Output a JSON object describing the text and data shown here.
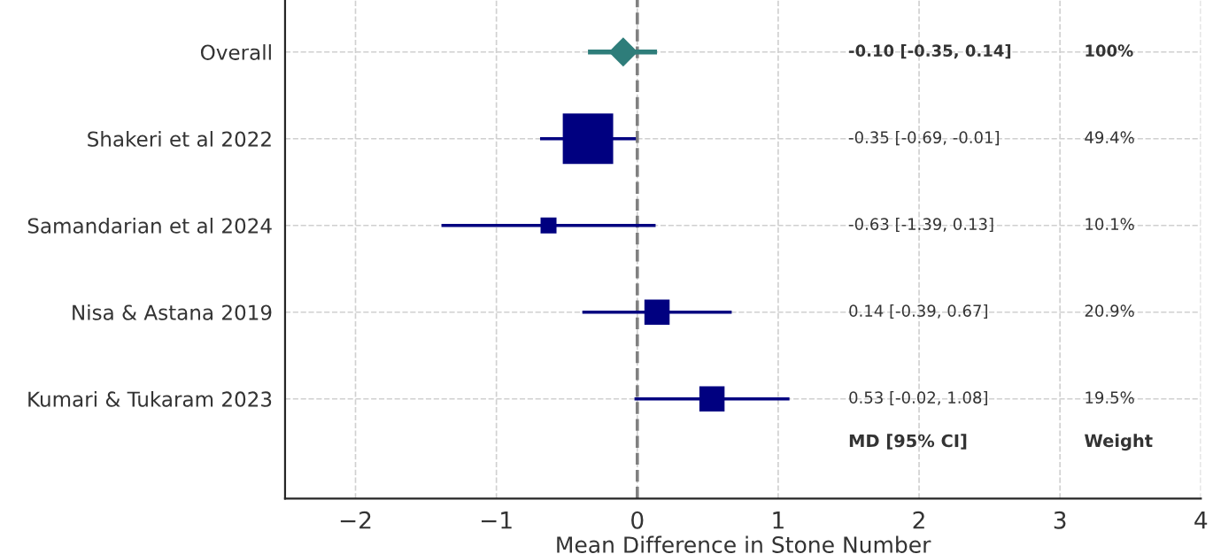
{
  "chart_data": {
    "type": "scatter",
    "orientation": "horizontal",
    "xlabel": "Mean Difference in Stone Number",
    "categories": [
      "Overall",
      "Shakeri et al 2022",
      "Samandarian et al 2024",
      "Nisa & Astana 2019",
      "Kumari & Tukaram 2023"
    ],
    "series": [
      {
        "marker": "diamond",
        "color": "#2e7d7a",
        "values": [
          -0.1,
          null,
          null,
          null,
          null
        ],
        "errors": [
          [
            -0.35,
            0.14
          ],
          null,
          null,
          null,
          null
        ]
      },
      {
        "type": "bubble",
        "marker": "square",
        "color": "#000080",
        "values": [
          null,
          -0.35,
          -0.63,
          0.14,
          0.53
        ],
        "sizes": [
          null,
          1,
          0.1,
          0.25,
          0.25
        ],
        "errors": [
          null,
          [
            -0.69,
            -0.01
          ],
          [
            -1.39,
            0.13
          ],
          [
            -0.39,
            0.67
          ],
          [
            -0.02,
            1.08
          ]
        ]
      }
    ],
    "xlim": [
      -2.5,
      4
    ],
    "xticks": [
      {
        "value": -2,
        "label": "−2"
      },
      {
        "value": -1,
        "label": "−1"
      },
      0,
      1,
      2,
      3,
      4
    ],
    "grid": true,
    "ref_lines": [
      {
        "axis": "x",
        "value": 0,
        "color": "#808080",
        "line_style": "dashed"
      }
    ],
    "annotations": [
      "-0.10 [-0.35, 0.14]",
      "100%",
      "-0.35 [-0.69, -0.01]",
      "49.4%",
      "-0.63 [-1.39, 0.13]",
      "10.1%",
      "0.14 [-0.39, 0.67]",
      "20.9%",
      "0.53 [-0.02, 1.08]",
      "19.5%",
      "MD [95% CI]",
      "Weight"
    ]
  }
}
